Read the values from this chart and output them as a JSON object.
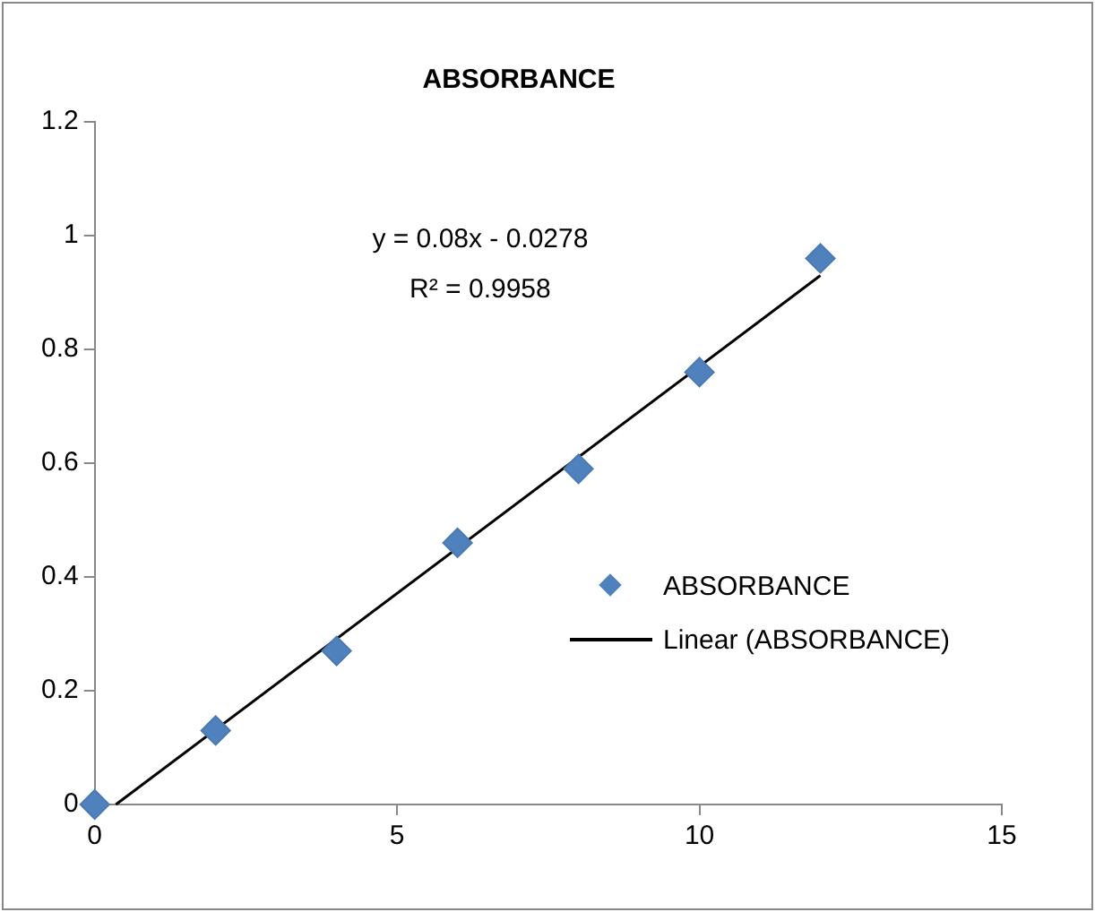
{
  "chart_data": {
    "type": "scatter",
    "title": "ABSORBANCE",
    "x": [
      0,
      2,
      4,
      6,
      8,
      10,
      12
    ],
    "series": [
      {
        "name": "ABSORBANCE",
        "color": "#4f81bd",
        "marker": "diamond",
        "values": [
          0,
          0.13,
          0.27,
          0.46,
          0.59,
          0.76,
          0.96
        ]
      },
      {
        "name": "Linear (ABSORBANCE)",
        "type": "line",
        "color": "#000000",
        "marker": "none",
        "x": [
          0.35,
          12
        ],
        "values": [
          0,
          0.93
        ]
      }
    ],
    "xlim": [
      0,
      15
    ],
    "xticks": [
      0,
      5,
      10,
      15
    ],
    "ylim": [
      0,
      1.2
    ],
    "yticks": [
      0,
      0.2,
      0.4,
      0.6,
      0.8,
      1,
      1.2
    ],
    "grid": false,
    "legend": "right",
    "annotations": [
      "y = 0.08x - 0.0278",
      "R² = 0.9958"
    ]
  }
}
